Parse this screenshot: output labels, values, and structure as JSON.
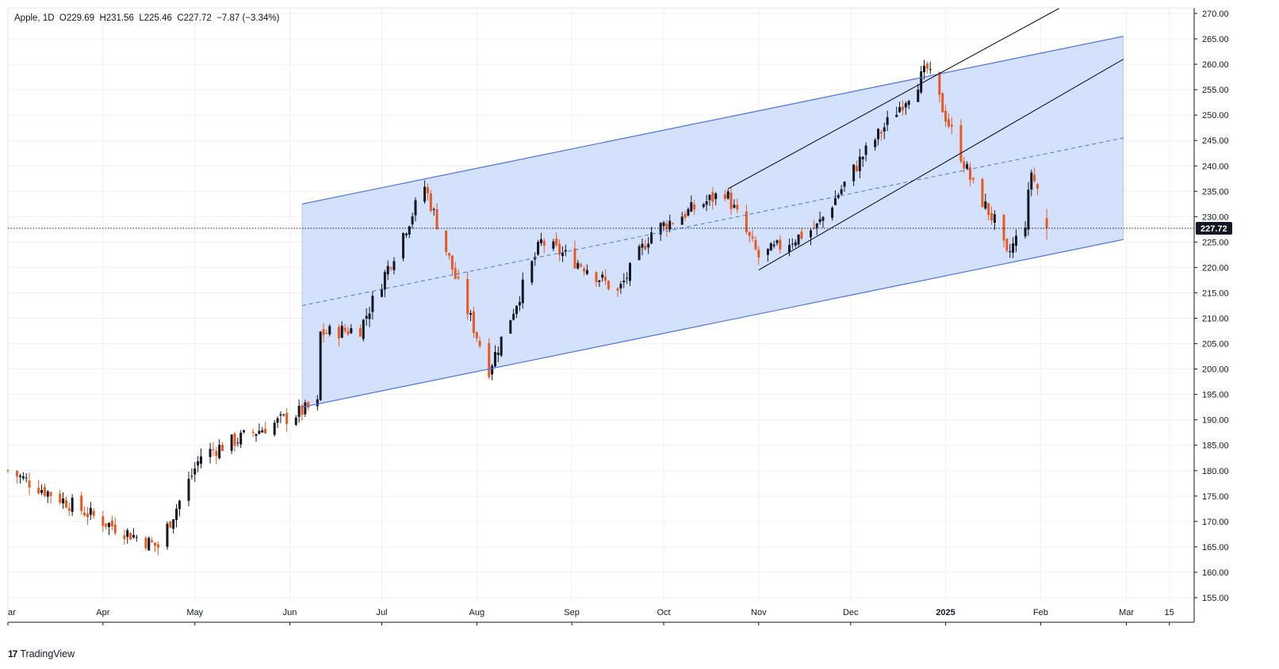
{
  "legend": {
    "symbol": "Apple",
    "interval": "1D",
    "open_label": "O",
    "open": "229.69",
    "high_label": "H",
    "high": "231.56",
    "low_label": "L",
    "low": "225.46",
    "close_label": "C",
    "close": "227.72",
    "change": "−7.87 (−3.34%)"
  },
  "brand": {
    "logo": "17",
    "name": "TradingView"
  },
  "current_price": "227.72",
  "colors": {
    "up": "#131722",
    "down": "#e8591e",
    "channel_fill": "#cddcfb",
    "channel_line": "#4a74e0",
    "trendline": "#131722",
    "grid": "#eef0f3",
    "price_tag": "#131722"
  },
  "chart_data": {
    "type": "candlestick",
    "title": "Apple",
    "interval": "1D",
    "ylim": [
      155,
      270
    ],
    "y_ticks": [
      "270.00",
      "265.00",
      "260.00",
      "255.00",
      "250.00",
      "245.00",
      "240.00",
      "235.00",
      "230.00",
      "225.00",
      "220.00",
      "215.00",
      "210.00",
      "205.00",
      "200.00",
      "195.00",
      "190.00",
      "185.00",
      "180.00",
      "175.00",
      "170.00",
      "165.00",
      "160.00",
      "155.00"
    ],
    "x_range": [
      "2024-03-01",
      "2025-03-20"
    ],
    "x_ticks": [
      {
        "date": "2024-03-01",
        "label": "ar",
        "bold": false
      },
      {
        "date": "2024-04-01",
        "label": "Apr",
        "bold": false
      },
      {
        "date": "2024-05-01",
        "label": "May",
        "bold": false
      },
      {
        "date": "2024-06-01",
        "label": "Jun",
        "bold": false
      },
      {
        "date": "2024-07-01",
        "label": "Jul",
        "bold": false
      },
      {
        "date": "2024-08-01",
        "label": "Aug",
        "bold": false
      },
      {
        "date": "2024-09-01",
        "label": "Sep",
        "bold": false
      },
      {
        "date": "2024-10-01",
        "label": "Oct",
        "bold": false
      },
      {
        "date": "2024-11-01",
        "label": "Nov",
        "bold": false
      },
      {
        "date": "2024-12-01",
        "label": "Dec",
        "bold": false
      },
      {
        "date": "2025-01-01",
        "label": "2025",
        "bold": true
      },
      {
        "date": "2025-02-01",
        "label": "Feb",
        "bold": false
      },
      {
        "date": "2025-03-01",
        "label": "Mar",
        "bold": false
      },
      {
        "date": "2025-03-15",
        "label": "15",
        "bold": false
      }
    ],
    "key_points": [
      {
        "date": "2024-03-01",
        "close": 180
      },
      {
        "date": "2024-04-01",
        "close": 170
      },
      {
        "date": "2024-04-19",
        "close": 165
      },
      {
        "date": "2024-05-03",
        "close": 183
      },
      {
        "date": "2024-06-10",
        "close": 193
      },
      {
        "date": "2024-06-11",
        "close": 207
      },
      {
        "date": "2024-06-24",
        "close": 208
      },
      {
        "date": "2024-07-15",
        "close": 236
      },
      {
        "date": "2024-07-25",
        "close": 218
      },
      {
        "date": "2024-08-05",
        "close": 200
      },
      {
        "date": "2024-08-22",
        "close": 225
      },
      {
        "date": "2024-09-06",
        "close": 220
      },
      {
        "date": "2024-09-16",
        "close": 215
      },
      {
        "date": "2024-09-27",
        "close": 227
      },
      {
        "date": "2024-10-21",
        "close": 235
      },
      {
        "date": "2024-11-01",
        "close": 222
      },
      {
        "date": "2024-11-20",
        "close": 228
      },
      {
        "date": "2024-12-05",
        "close": 242
      },
      {
        "date": "2024-12-26",
        "close": 259
      },
      {
        "date": "2025-01-10",
        "close": 236
      },
      {
        "date": "2025-01-17",
        "close": 229
      },
      {
        "date": "2025-01-21",
        "close": 222
      },
      {
        "date": "2025-01-27",
        "close": 229
      },
      {
        "date": "2025-01-29",
        "close": 239
      },
      {
        "date": "2025-01-30",
        "close": 237
      },
      {
        "date": "2025-01-31",
        "close": 235.6
      },
      {
        "date": "2025-02-03",
        "open": 229.69,
        "high": 231.56,
        "low": 225.46,
        "close": 227.72
      }
    ],
    "channel": {
      "upper": [
        {
          "date": "2024-06-05",
          "value": 232.5
        },
        {
          "date": "2025-02-28",
          "value": 265.5
        }
      ],
      "lower": [
        {
          "date": "2024-06-05",
          "value": 192.5
        },
        {
          "date": "2025-02-28",
          "value": 225.5
        }
      ],
      "mid": [
        {
          "date": "2024-06-05",
          "value": 212.5
        },
        {
          "date": "2025-02-28",
          "value": 245.5
        }
      ]
    },
    "trendlines": [
      {
        "from": {
          "date": "2024-10-22",
          "value": 235.5
        },
        "to": {
          "date": "2025-02-07",
          "value": 271
        }
      },
      {
        "from": {
          "date": "2024-11-01",
          "value": 219.5
        },
        "to": {
          "date": "2025-02-28",
          "value": 261
        }
      }
    ],
    "current_price_line": 227.72
  }
}
